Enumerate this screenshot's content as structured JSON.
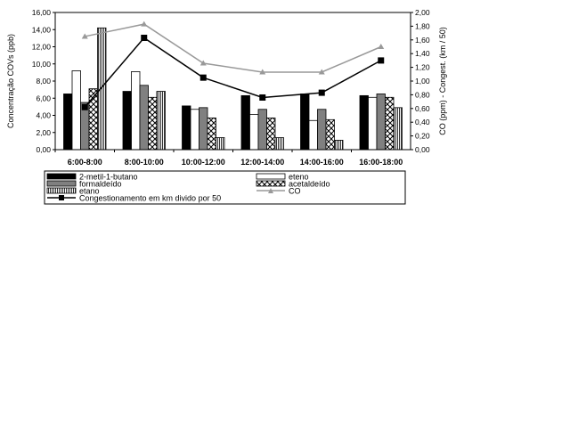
{
  "chart_data": {
    "type": "bar",
    "categories": [
      "6:00-8:00",
      "8:00-10:00",
      "10:00-12:00",
      "12:00-14:00",
      "14:00-16:00",
      "16:00-18:00"
    ],
    "ylabel": "Concentração COVs (ppb)",
    "y2label": "CO (ppm) - Congest. (km / 50)",
    "ylim": [
      0,
      16
    ],
    "y2lim": [
      0,
      2
    ],
    "yticks": [
      "0,00",
      "2,00",
      "4,00",
      "6,00",
      "8,00",
      "10,00",
      "12,00",
      "14,00",
      "16,00"
    ],
    "y2ticks": [
      "0,00",
      "0,20",
      "0,40",
      "0,60",
      "0,80",
      "1,00",
      "1,20",
      "1,40",
      "1,60",
      "1,80",
      "2,00"
    ],
    "grid": false,
    "legend_position": "bottom",
    "series": [
      {
        "name": "2-metil-1-butano",
        "kind": "bar",
        "axis": "left",
        "fill": "#000000",
        "pattern": "solid",
        "values": [
          6.5,
          6.8,
          5.1,
          6.3,
          6.5,
          6.3
        ]
      },
      {
        "name": "eteno",
        "kind": "bar",
        "axis": "left",
        "fill": "#ffffff",
        "pattern": "solid",
        "values": [
          9.2,
          9.1,
          4.7,
          4.1,
          3.4,
          6.1
        ]
      },
      {
        "name": "formaldeído",
        "kind": "bar",
        "axis": "left",
        "fill": "#808080",
        "pattern": "solid",
        "values": [
          5.5,
          7.5,
          4.9,
          4.7,
          4.7,
          6.5
        ]
      },
      {
        "name": "acetaldeído",
        "kind": "bar",
        "axis": "left",
        "fill": "#ffffff",
        "pattern": "checker",
        "values": [
          7.1,
          6.1,
          3.7,
          3.7,
          3.5,
          6.1
        ]
      },
      {
        "name": "etano",
        "kind": "bar",
        "axis": "left",
        "fill": "#ffffff",
        "pattern": "vlines",
        "values": [
          14.2,
          6.8,
          1.4,
          1.4,
          1.1,
          4.9
        ]
      },
      {
        "name": "CO",
        "kind": "line",
        "axis": "right",
        "color": "#999999",
        "marker": "triangle",
        "values": [
          1.65,
          1.83,
          1.26,
          1.13,
          1.13,
          1.5
        ]
      },
      {
        "name": "Congestionamento em km divido por 50",
        "kind": "line",
        "axis": "right",
        "color": "#000000",
        "marker": "square",
        "values": [
          0.62,
          1.63,
          1.05,
          0.76,
          0.83,
          1.3
        ]
      }
    ]
  }
}
